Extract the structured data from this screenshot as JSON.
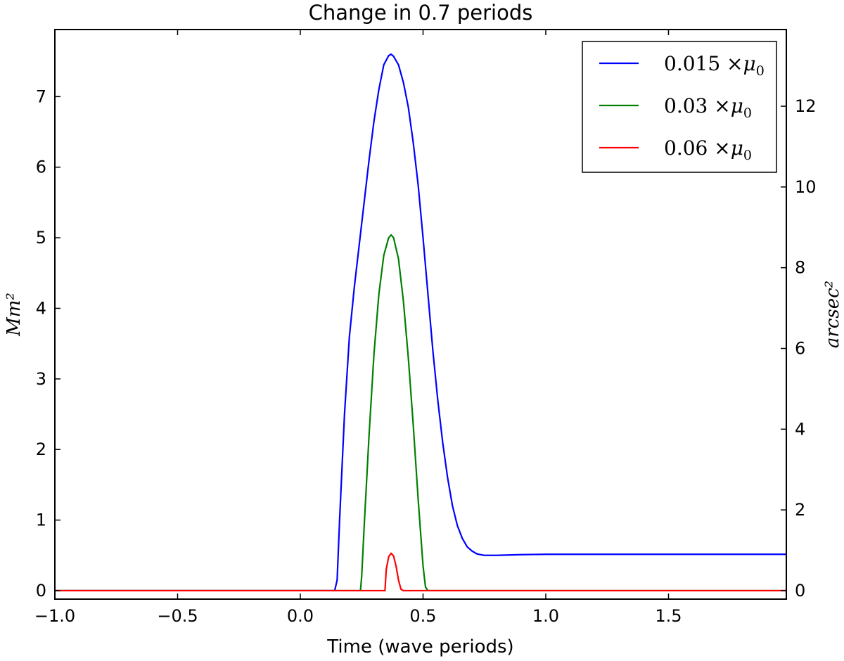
{
  "chart_data": {
    "type": "line",
    "title": "Change in 0.7 periods",
    "xlabel": "Time (wave periods)",
    "ylabel_left": "Mm²",
    "ylabel_right": "arcsec²",
    "xlim": [
      -1.0,
      1.98
    ],
    "ylim_left": [
      -0.12,
      7.95
    ],
    "ylim_right": [
      -0.21,
      13.9
    ],
    "x_ticks": [
      -1.0,
      -0.5,
      0.0,
      0.5,
      1.0,
      1.5
    ],
    "x_tick_labels": [
      "−1.0",
      "−0.5",
      "0.0",
      "0.5",
      "1.0",
      "1.5"
    ],
    "y_ticks_left": [
      0,
      1,
      2,
      3,
      4,
      5,
      6,
      7
    ],
    "y_tick_labels_left": [
      "0",
      "1",
      "2",
      "3",
      "4",
      "5",
      "6",
      "7"
    ],
    "y_ticks_right": [
      0,
      2,
      4,
      6,
      8,
      10,
      12
    ],
    "y_tick_labels_right": [
      "0",
      "2",
      "4",
      "6",
      "8",
      "10",
      "12"
    ],
    "legend_position": "top-right",
    "series": [
      {
        "name": "0.015 ×μ₀",
        "label_main": "0.015 ×",
        "label_mu": "μ",
        "label_sub": "0",
        "color": "#0000ff",
        "x": [
          -1.0,
          0.14,
          0.15,
          0.16,
          0.18,
          0.2,
          0.22,
          0.24,
          0.26,
          0.28,
          0.3,
          0.32,
          0.34,
          0.36,
          0.37,
          0.38,
          0.4,
          0.42,
          0.44,
          0.46,
          0.48,
          0.5,
          0.52,
          0.54,
          0.56,
          0.58,
          0.6,
          0.62,
          0.64,
          0.66,
          0.68,
          0.7,
          0.72,
          0.75,
          0.8,
          0.9,
          1.0,
          1.2,
          1.5,
          1.98
        ],
        "y": [
          0.0,
          0.0,
          0.15,
          1.0,
          2.5,
          3.6,
          4.3,
          4.9,
          5.5,
          6.1,
          6.65,
          7.1,
          7.45,
          7.58,
          7.6,
          7.57,
          7.45,
          7.2,
          6.85,
          6.35,
          5.75,
          5.0,
          4.2,
          3.4,
          2.7,
          2.1,
          1.6,
          1.2,
          0.92,
          0.74,
          0.62,
          0.56,
          0.52,
          0.5,
          0.5,
          0.51,
          0.515,
          0.515,
          0.515,
          0.515
        ]
      },
      {
        "name": "0.03 ×μ₀",
        "label_main": "0.03 ×",
        "label_mu": "μ",
        "label_sub": "0",
        "color": "#008000",
        "x": [
          -1.0,
          0.245,
          0.25,
          0.26,
          0.28,
          0.3,
          0.32,
          0.34,
          0.36,
          0.37,
          0.38,
          0.4,
          0.42,
          0.44,
          0.46,
          0.48,
          0.5,
          0.51,
          0.52,
          1.98
        ],
        "y": [
          0.0,
          0.0,
          0.2,
          0.9,
          2.2,
          3.35,
          4.2,
          4.75,
          5.0,
          5.04,
          5.0,
          4.7,
          4.1,
          3.3,
          2.35,
          1.3,
          0.35,
          0.05,
          0.0,
          0.0
        ]
      },
      {
        "name": "0.06 ×μ₀",
        "label_main": "0.06 ×",
        "label_mu": "μ",
        "label_sub": "0",
        "color": "#ff0000",
        "x": [
          -1.0,
          0.345,
          0.35,
          0.36,
          0.37,
          0.38,
          0.39,
          0.4,
          0.41,
          0.42,
          1.98
        ],
        "y": [
          0.0,
          0.0,
          0.3,
          0.48,
          0.53,
          0.49,
          0.35,
          0.15,
          0.02,
          0.0,
          0.0
        ]
      }
    ]
  }
}
